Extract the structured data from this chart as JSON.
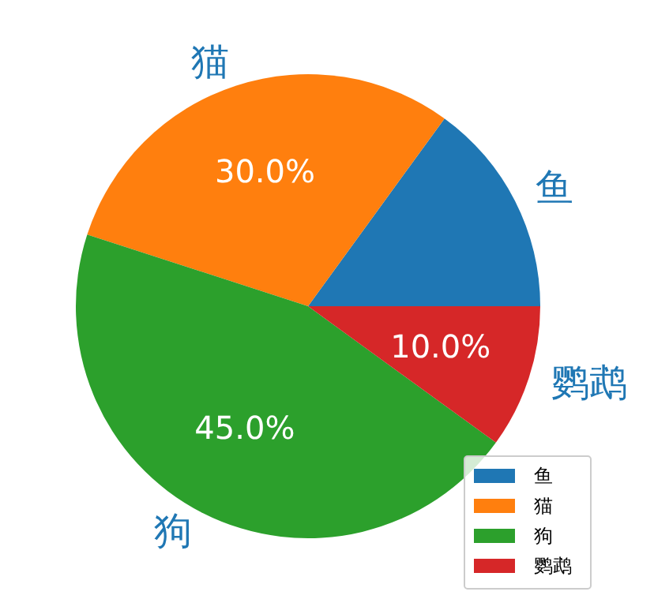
{
  "chart_data": {
    "type": "pie",
    "categories": [
      "鱼",
      "猫",
      "狗",
      "鹦鹉"
    ],
    "values": [
      15,
      30,
      45,
      10
    ],
    "colors": [
      "#1f77b4",
      "#ff7f0e",
      "#2ca02c",
      "#d62728"
    ],
    "value_labels": [
      null,
      "30.0%",
      "45.0%",
      "10.0%"
    ],
    "legend": "bottom right"
  }
}
